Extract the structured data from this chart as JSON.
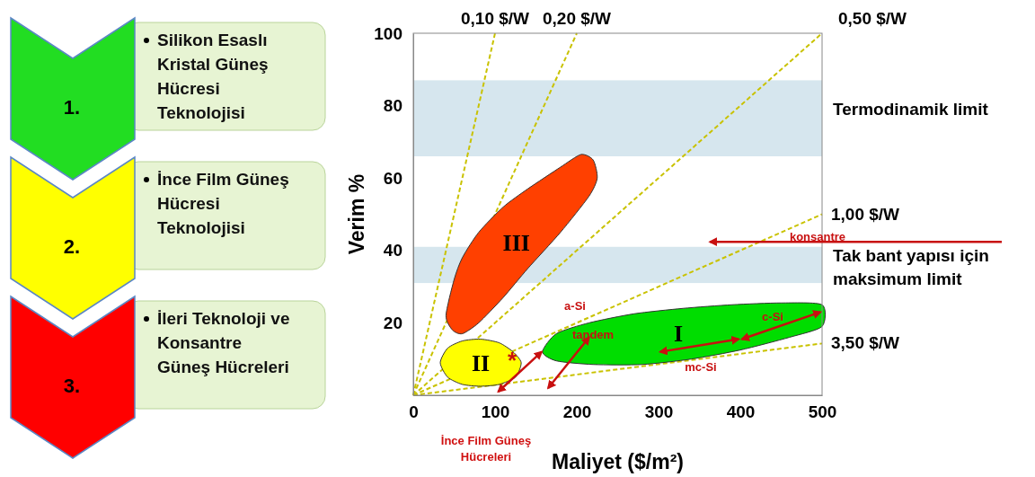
{
  "chart_data": {
    "type": "line",
    "xlabel": "Maliyet ($/m²)",
    "ylabel": "Verim %",
    "xlim": [
      0,
      500
    ],
    "ylim": [
      0,
      100
    ],
    "xticks": [
      0,
      100,
      200,
      300,
      400,
      500
    ],
    "yticks": [
      20,
      40,
      60,
      80,
      100
    ],
    "grid": false,
    "line_style": "dashed",
    "series": [
      {
        "name": "0,10 $/W",
        "color": "#c9c200",
        "x": [
          0,
          100
        ],
        "values": [
          0,
          100
        ]
      },
      {
        "name": "0,20 $/W",
        "color": "#c9c200",
        "x": [
          0,
          200
        ],
        "values": [
          0,
          100
        ]
      },
      {
        "name": "0,50 $/W",
        "color": "#c9c200",
        "x": [
          0,
          500
        ],
        "values": [
          0,
          100
        ]
      },
      {
        "name": "1,00 $/W",
        "color": "#c9c200",
        "x": [
          0,
          500
        ],
        "values": [
          0,
          50
        ]
      },
      {
        "name": "3,50 $/W",
        "color": "#c9c200",
        "x": [
          0,
          500
        ],
        "values": [
          0,
          14.3
        ]
      },
      {
        "type": "area",
        "name": "III",
        "color": "#ff4000",
        "x": [
          40,
          50,
          60,
          80,
          110,
          140,
          180,
          205,
          220,
          225,
          215,
          180,
          140,
          110,
          80,
          60,
          48
        ],
        "values": [
          22,
          32,
          38,
          45,
          52,
          57,
          63,
          66.5,
          65,
          60,
          55,
          45,
          35,
          27,
          20,
          17,
          18
        ]
      },
      {
        "type": "area",
        "name": "II",
        "color": "#ffff00",
        "x": [
          33,
          42,
          60,
          82,
          105,
          122,
          132,
          125,
          105,
          82,
          60,
          42
        ],
        "values": [
          9,
          13,
          15,
          15.5,
          14.5,
          12,
          9,
          5,
          3,
          2.5,
          3,
          5
        ]
      },
      {
        "type": "area",
        "name": "I",
        "color": "#00dd00",
        "x": [
          158,
          175,
          215,
          270,
          330,
          390,
          450,
          500,
          500,
          460,
          400,
          340,
          280,
          220,
          175
        ],
        "values": [
          12,
          17,
          20,
          22.5,
          24,
          25,
          25.5,
          25,
          19,
          16,
          12.5,
          10,
          8.5,
          8.5,
          9.5
        ]
      }
    ],
    "bands": [
      {
        "axis": "y",
        "from": 66,
        "to": 87,
        "label": "Termodinamik limit",
        "color": "#d6e6ee"
      },
      {
        "axis": "y",
        "from": 31,
        "to": 41,
        "label": "Tak bant yapısı için maksimum limit",
        "color": "#d6e6ee"
      }
    ],
    "annotations": [
      "1.",
      "Silikon Esaslı Kristal Güneş Hücresi Teknolojisi",
      "2.",
      "İnce Film Güneş Hücresi Teknolojisi",
      "3.",
      "İleri Teknoloji ve Konsantre Güneş Hücreleri",
      "İnce Film Güneş Hücreleri",
      "a-Si",
      "tandem",
      "mc-Si",
      "c-Si",
      "*",
      "konsantre"
    ]
  }
}
